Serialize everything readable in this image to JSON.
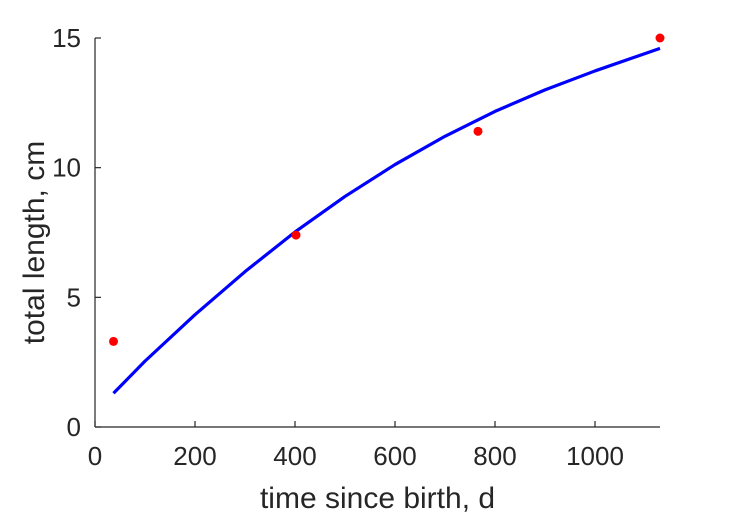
{
  "chart_data": {
    "type": "scatter",
    "title": "",
    "xlabel": "time since birth, d",
    "ylabel": "total length, cm",
    "xlim": [
      0,
      1130
    ],
    "ylim": [
      0,
      15
    ],
    "xticks": [
      0,
      200,
      400,
      600,
      800,
      1000
    ],
    "yticks": [
      0,
      5,
      10,
      15
    ],
    "xtick_labels": [
      "0",
      "200",
      "400",
      "600",
      "800",
      "1000"
    ],
    "ytick_labels": [
      "0",
      "5",
      "10",
      "15"
    ],
    "grid": false,
    "legend": "none",
    "series": [
      {
        "kind": "scatter",
        "color": "#ff0000",
        "x": [
          37,
          402,
          766,
          1130
        ],
        "y": [
          3.3,
          7.4,
          11.4,
          15.0
        ]
      },
      {
        "kind": "line",
        "color": "#0000ff",
        "x": [
          37,
          100,
          200,
          300,
          400,
          500,
          600,
          700,
          800,
          900,
          1000,
          1130
        ],
        "y": [
          1.3,
          2.54,
          4.33,
          5.99,
          7.52,
          8.89,
          10.12,
          11.21,
          12.17,
          13.0,
          13.73,
          14.6
        ]
      }
    ]
  }
}
